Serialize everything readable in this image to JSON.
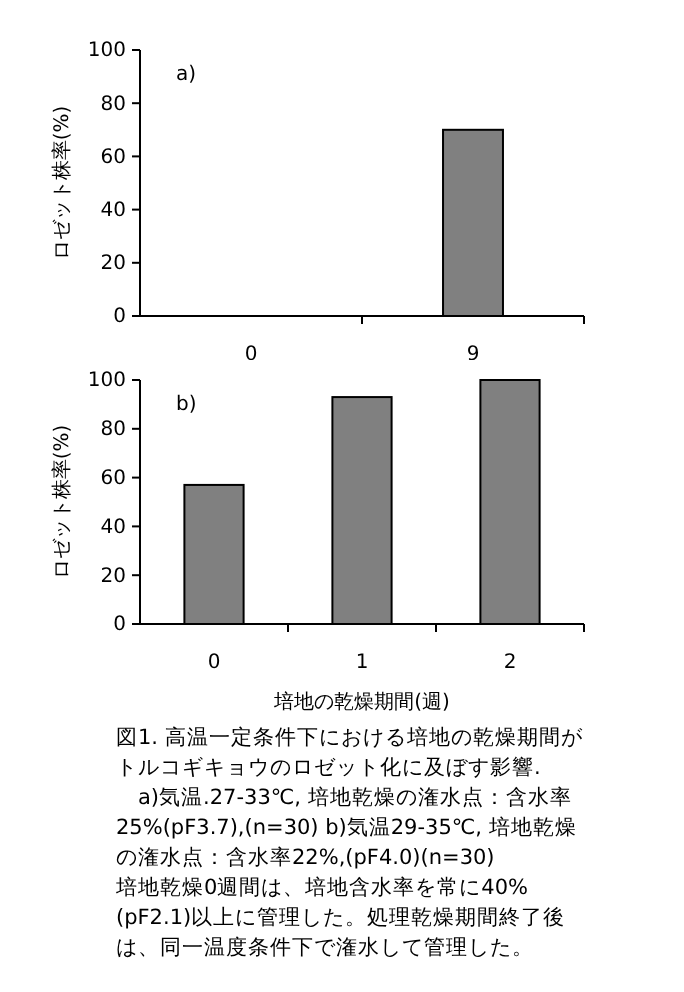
{
  "chart_data": [
    {
      "type": "bar",
      "title": "a)",
      "ylabel": "ロゼット株率(%)",
      "categories": [
        "0",
        "9"
      ],
      "values": [
        0,
        70
      ],
      "color": "#808080",
      "ylim": [
        0,
        100
      ],
      "yticks": [
        0,
        20,
        40,
        60,
        80,
        100
      ],
      "grid": false
    },
    {
      "type": "bar",
      "title": "b)",
      "ylabel": "ロゼット株率(%)",
      "xlabel": "培地の乾燥期間(週)",
      "categories": [
        "0",
        "1",
        "2"
      ],
      "values": [
        57,
        93,
        100
      ],
      "color": "#808080",
      "ylim": [
        0,
        100
      ],
      "yticks": [
        0,
        20,
        40,
        60,
        80,
        100
      ],
      "grid": false,
      "annotations": [
        "図1. 高温一定条件下における培地の乾燥期間がトルコギキョウのロゼット化に及ぼす影響.",
        "　a)気温.27-33℃, 培地乾燥の潅水点：含水率25%(pF3.7),(n=30) b)気温29-35℃, 培地乾燥の潅水点：含水率22%,(pF4.0)(n=30)",
        "培地乾燥0週間は、培地含水率を常に40%(pF2.1)以上に管理した。処理乾燥期間終了後は、同一温度条件下で潅水して管理した。"
      ]
    }
  ]
}
